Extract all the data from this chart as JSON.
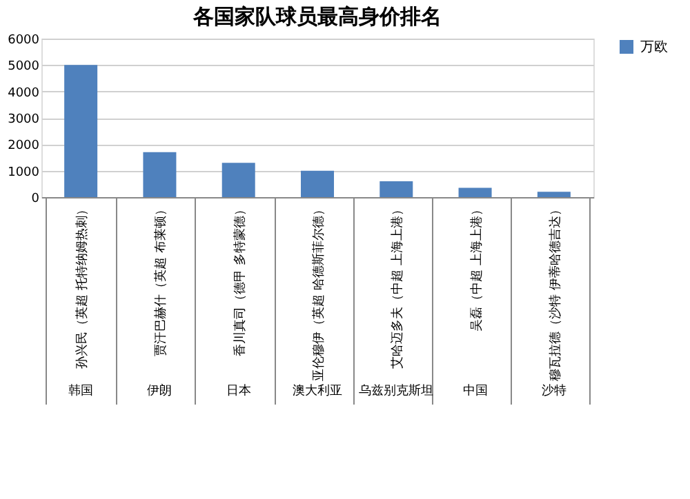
{
  "chart_data": {
    "type": "bar",
    "title": "各国家队球员最高身价排名",
    "categories": [
      "孙兴民（英超 托特纳姆热刺）",
      "贾汗巴赫什（英超 布莱顿）",
      "香川真司（德甲 多特蒙德）",
      "亚伦穆伊（英超 哈德斯菲尔德）",
      "艾哈迈多夫（中超 上海上港）",
      "吴磊（中超 上海上港）",
      "穆瓦拉德（沙特 伊蒂哈德吉达）"
    ],
    "series": [
      {
        "name": "万欧",
        "color": "#4f81bd",
        "values": [
          5000,
          1700,
          1300,
          1000,
          600,
          350,
          200
        ]
      }
    ],
    "annotations": [
      "韩国",
      "伊朗",
      "日本",
      "澳大利亚",
      "乌兹别克斯坦",
      "中国",
      "沙特"
    ],
    "ylim": [
      0,
      6000
    ],
    "yticks": [
      0,
      1000,
      2000,
      3000,
      4000,
      5000,
      6000
    ],
    "grid": "y",
    "legend": "right"
  }
}
